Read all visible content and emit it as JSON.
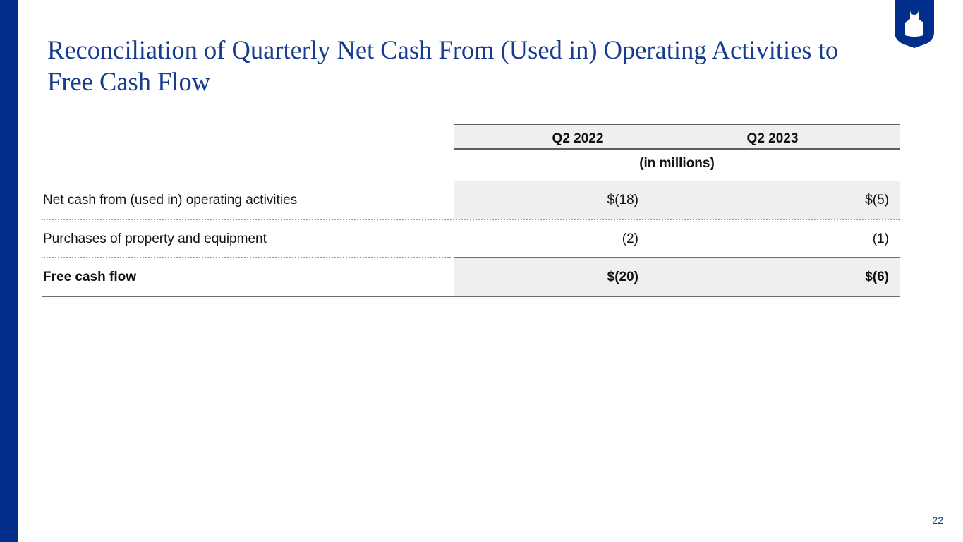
{
  "slide": {
    "title": "Reconciliation of Quarterly Net Cash From (Used in) Operating Activities to Free Cash Flow",
    "page_number": "22",
    "brand_color": "#002e8a",
    "logo_icon": "apron-icon"
  },
  "table": {
    "columns": [
      "Q2 2022",
      "Q2 2023"
    ],
    "units_label": "(in millions)",
    "rows": [
      {
        "label": "Net cash from (used in) operating activities",
        "values": [
          "$(18)",
          "$(5)"
        ]
      },
      {
        "label": "Purchases of property and equipment",
        "values": [
          "(2)",
          "(1)"
        ]
      },
      {
        "label": "Free cash flow",
        "values": [
          "$(20)",
          "$(6)"
        ]
      }
    ]
  }
}
